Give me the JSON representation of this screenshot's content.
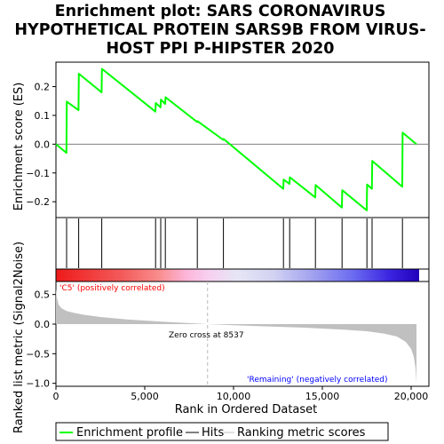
{
  "title_lines": [
    "Enrichment plot: SARS CORONAVIRUS",
    "HYPOTHETICAL PROTEIN SARS9B FROM VIRUS-",
    "HOST PPI P-HIPSTER 2020"
  ],
  "colors": {
    "es_line": "#00ff00",
    "hits": "#000000",
    "metric_fill": "#c0c0c0",
    "pos_label": "#ff0000",
    "neg_label": "#0000ff",
    "zero_cross_line": "#bbbbbb"
  },
  "annotations": {
    "positive": "'C5' (positively correlated)",
    "negative": "'Remaining' (negatively correlated)",
    "zero_cross": "Zero cross at 8537"
  },
  "legend": [
    {
      "label": "Enrichment profile",
      "kind": "green-line"
    },
    {
      "label": "Hits",
      "kind": "black-line"
    },
    {
      "label": "Ranking metric scores",
      "kind": "gray-line"
    }
  ],
  "chart_data": {
    "type": "line",
    "title": "Enrichment plot: SARS CORONAVIRUS HYPOTHETICAL PROTEIN SARS9B FROM VIRUS-HOST PPI P-HIPSTER 2020",
    "xlabel": "Rank in Ordered Dataset",
    "xlim": [
      0,
      21000
    ],
    "x_ticks": [
      0,
      5000,
      10000,
      15000,
      20000
    ],
    "x_tick_labels": [
      "0",
      "5,000",
      "10,000",
      "15,000",
      "20,000"
    ],
    "grid": false,
    "legend_position": "bottom",
    "zero_cross": 8537,
    "enrichment": {
      "ylabel": "Enrichment score (ES)",
      "ylim": [
        -0.255,
        0.285
      ],
      "y_ticks": [
        -0.2,
        -0.1,
        0.0,
        0.1,
        0.2
      ],
      "y_tick_labels": [
        "−0.2",
        "−0.1",
        "0.0",
        "0.1",
        "0.2"
      ],
      "series": [
        {
          "name": "Enrichment profile",
          "x": [
            0,
            590,
            610,
            1270,
            1290,
            2570,
            2590,
            5600,
            5620,
            5890,
            5910,
            6150,
            6170,
            7950,
            7970,
            9420,
            9440,
            12800,
            12820,
            13150,
            13170,
            14600,
            14620,
            16100,
            16120,
            17500,
            17520,
            17790,
            17810,
            19500,
            19520,
            20300
          ],
          "y": [
            0.0,
            -0.03,
            0.148,
            0.118,
            0.245,
            0.18,
            0.262,
            0.113,
            0.143,
            0.128,
            0.155,
            0.14,
            0.163,
            0.077,
            0.08,
            0.015,
            0.018,
            -0.155,
            -0.123,
            -0.138,
            -0.115,
            -0.185,
            -0.142,
            -0.22,
            -0.16,
            -0.23,
            -0.14,
            -0.155,
            -0.058,
            -0.148,
            0.04,
            0.0
          ]
        }
      ]
    },
    "hits": [
      600,
      1280,
      2580,
      5610,
      5900,
      6160,
      7960,
      9430,
      12810,
      13160,
      14610,
      16110,
      17510,
      17800,
      19510
    ],
    "metric": {
      "ylabel": "Ranked list metric (Signal2Noise)",
      "ylim": [
        -1.05,
        0.72
      ],
      "y_ticks": [
        0.5,
        0.0,
        -0.5,
        -1.0
      ],
      "y_tick_labels": [
        "0.5",
        "0.0",
        "−0.5",
        "−1.0"
      ],
      "series": [
        {
          "name": "Ranking metric scores",
          "x": [
            0,
            50,
            150,
            300,
            600,
            1000,
            1500,
            2500,
            4000,
            6000,
            8537,
            11000,
            14000,
            16000,
            17500,
            18500,
            19200,
            19700,
            20000,
            20150,
            20250,
            20300
          ],
          "y": [
            0.6,
            0.45,
            0.33,
            0.27,
            0.22,
            0.19,
            0.16,
            0.12,
            0.08,
            0.04,
            0.0,
            -0.03,
            -0.06,
            -0.09,
            -0.12,
            -0.16,
            -0.21,
            -0.3,
            -0.42,
            -0.55,
            -0.75,
            -1.0
          ]
        }
      ]
    }
  }
}
